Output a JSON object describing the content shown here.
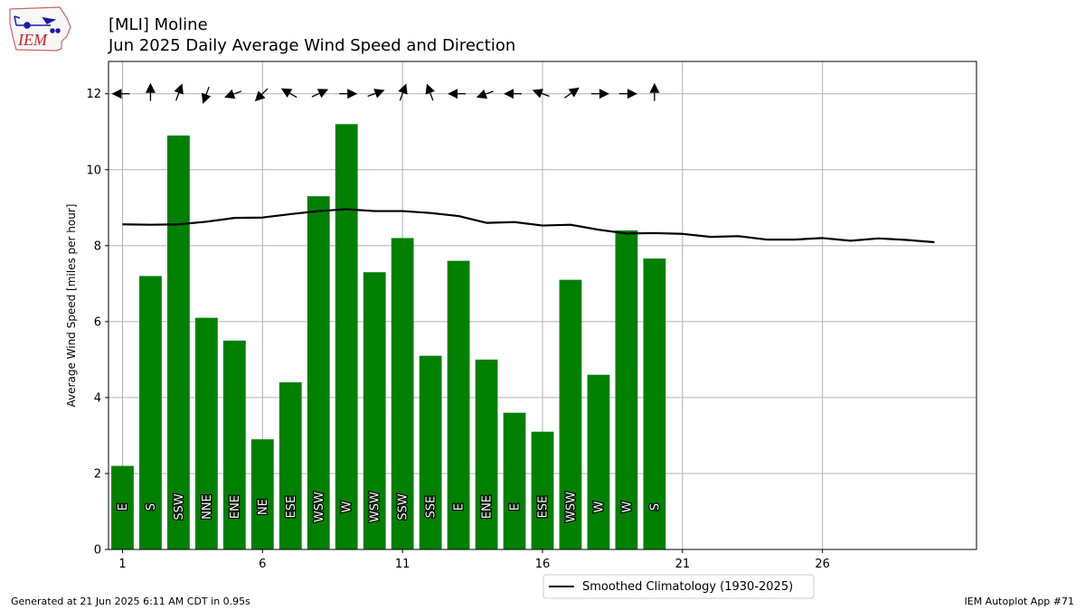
{
  "title_line1": "[MLI] Moline",
  "title_line2": "Jun 2025 Daily Average Wind Speed and Direction",
  "logo_text": "IEM",
  "footer_left": "Generated at 21 Jun 2025 6:11 AM CDT in 0.95s",
  "footer_right": "IEM Autoplot App #71",
  "colors": {
    "bar": "#008000",
    "climo_line": "#000000",
    "grid": "#b0b0b0",
    "logo_text": "#cc2222",
    "logo_icon": "#1a1aa8"
  },
  "chart_data": {
    "type": "bar",
    "ylabel": "Average Wind Speed [miles per hour]",
    "xlim": [
      0.5,
      31.5
    ],
    "ylim": [
      0,
      12.85
    ],
    "xticks": [
      1,
      6,
      11,
      16,
      21,
      26
    ],
    "yticks": [
      0,
      2,
      4,
      6,
      8,
      10,
      12
    ],
    "grid": true,
    "legend_position": "bottom-right",
    "days": [
      1,
      2,
      3,
      4,
      5,
      6,
      7,
      8,
      9,
      10,
      11,
      12,
      13,
      14,
      15,
      16,
      17,
      18,
      19,
      20
    ],
    "values": [
      2.2,
      7.2,
      10.9,
      6.1,
      5.5,
      2.9,
      4.4,
      9.3,
      11.2,
      7.3,
      8.2,
      5.1,
      7.6,
      5.0,
      3.6,
      3.1,
      7.1,
      4.6,
      8.4,
      7.66
    ],
    "directions": [
      "E",
      "S",
      "SSW",
      "NNE",
      "ENE",
      "NE",
      "ESE",
      "WSW",
      "W",
      "WSW",
      "SSW",
      "SSE",
      "E",
      "ENE",
      "E",
      "ESE",
      "WSW",
      "W",
      "W",
      "S"
    ],
    "arrow_degrees": [
      90,
      180,
      200,
      20,
      70,
      45,
      120,
      245,
      270,
      250,
      200,
      160,
      90,
      70,
      90,
      110,
      235,
      270,
      270,
      180
    ],
    "climatology": {
      "name": "Smoothed Climatology (1930-2025)",
      "days": [
        1,
        2,
        3,
        4,
        5,
        6,
        7,
        8,
        9,
        10,
        11,
        12,
        13,
        14,
        15,
        16,
        17,
        18,
        19,
        20,
        21,
        22,
        23,
        24,
        25,
        26,
        27,
        28,
        29,
        30
      ],
      "values": [
        8.56,
        8.55,
        8.56,
        8.63,
        8.73,
        8.74,
        8.83,
        8.91,
        8.96,
        8.91,
        8.91,
        8.86,
        8.78,
        8.6,
        8.62,
        8.53,
        8.55,
        8.42,
        8.32,
        8.33,
        8.31,
        8.23,
        8.25,
        8.16,
        8.16,
        8.2,
        8.13,
        8.19,
        8.15,
        8.09
      ]
    }
  }
}
